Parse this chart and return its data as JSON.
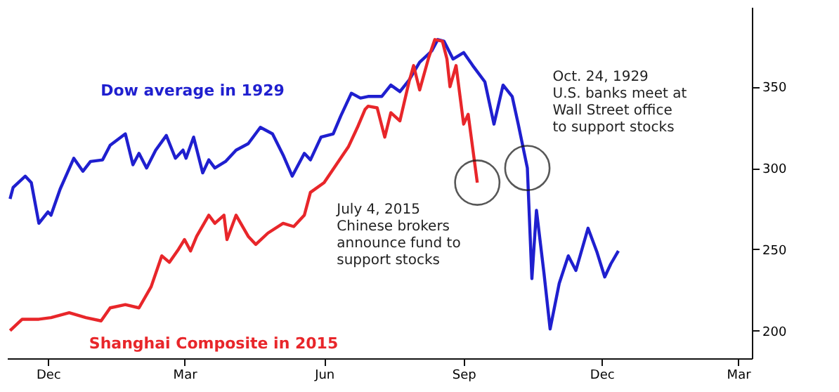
{
  "chart_data": {
    "type": "line",
    "xlim": [
      "1928-11-04",
      "1930-03-10"
    ],
    "xticks": [
      {
        "value": "1928-12-01",
        "label": "Dec"
      },
      {
        "value": "1929-03-01",
        "label": "Mar"
      },
      {
        "value": "1929-06-01",
        "label": "Jun"
      },
      {
        "value": "1929-09-01",
        "label": "Sep"
      },
      {
        "value": "1929-12-01",
        "label": "Dec"
      },
      {
        "value": "1930-03-01",
        "label": "Mar"
      }
    ],
    "ylim": [
      183,
      399
    ],
    "yticks": [
      200,
      250,
      300,
      350
    ],
    "series": [
      {
        "name": "Dow average in 1929",
        "color": "#1f1fcf",
        "x": [
          "1928-11-06",
          "1928-11-08",
          "1928-11-16",
          "1928-11-20",
          "1928-11-25",
          "1928-12-01",
          "1928-12-03",
          "1928-12-09",
          "1928-12-18",
          "1928-12-24",
          "1928-12-29",
          "1929-01-06",
          "1929-01-11",
          "1929-01-21",
          "1929-01-26",
          "1929-01-30",
          "1929-02-04",
          "1929-02-10",
          "1929-02-17",
          "1929-02-23",
          "1929-02-28",
          "1929-03-02",
          "1929-03-07",
          "1929-03-13",
          "1929-03-17",
          "1929-03-21",
          "1929-03-28",
          "1929-04-04",
          "1929-04-12",
          "1929-04-20",
          "1929-04-28",
          "1929-05-05",
          "1929-05-11",
          "1929-05-19",
          "1929-05-23",
          "1929-05-30",
          "1929-06-07",
          "1929-06-12",
          "1929-06-19",
          "1929-06-25",
          "1929-06-30",
          "1929-07-09",
          "1929-07-15",
          "1929-07-21",
          "1929-07-27",
          "1929-08-03",
          "1929-08-11",
          "1929-08-15",
          "1929-08-19",
          "1929-08-25",
          "1929-09-01",
          "1929-09-07",
          "1929-09-15",
          "1929-09-21",
          "1929-09-27",
          "1929-10-03",
          "1929-10-07",
          "1929-10-13",
          "1929-10-16",
          "1929-10-19",
          "1929-10-24",
          "1929-10-28",
          "1929-11-03",
          "1929-11-09",
          "1929-11-14",
          "1929-11-22",
          "1929-11-28",
          "1929-12-03",
          "1929-12-07",
          "1929-12-12"
        ],
        "values": [
          281,
          288,
          295,
          291,
          266,
          273,
          271,
          287,
          306,
          298,
          304,
          305,
          314,
          321,
          302,
          309,
          300,
          311,
          320,
          306,
          311,
          306,
          319,
          297,
          305,
          300,
          304,
          311,
          315,
          325,
          321,
          308,
          295,
          309,
          305,
          319,
          321,
          332,
          346,
          343,
          344,
          344,
          351,
          347,
          354,
          365,
          372,
          379,
          378,
          367,
          371,
          363,
          353,
          327,
          351,
          344,
          327,
          300,
          232,
          274,
          235,
          201,
          229,
          246,
          237,
          263,
          248,
          233,
          241,
          249
        ]
      },
      {
        "name": "Shanghai Composite in 2015",
        "color": "#e8262a",
        "x": [
          "1928-11-06",
          "1928-11-14",
          "1928-11-25",
          "1928-12-03",
          "1928-12-15",
          "1928-12-26",
          "1929-01-05",
          "1929-01-11",
          "1929-01-21",
          "1929-01-30",
          "1929-02-07",
          "1929-02-14",
          "1929-02-19",
          "1929-02-25",
          "1929-03-01",
          "1929-03-05",
          "1929-03-09",
          "1929-03-17",
          "1929-03-21",
          "1929-03-27",
          "1929-03-29",
          "1929-04-04",
          "1929-04-12",
          "1929-04-17",
          "1929-04-25",
          "1929-05-05",
          "1929-05-12",
          "1929-05-19",
          "1929-05-23",
          "1929-06-01",
          "1929-06-09",
          "1929-06-17",
          "1929-06-23",
          "1929-06-28",
          "1929-06-30",
          "1929-07-06",
          "1929-07-11",
          "1929-07-15",
          "1929-07-21",
          "1929-07-27",
          "1929-07-30",
          "1929-08-03",
          "1929-08-09",
          "1929-08-13",
          "1929-08-18",
          "1929-08-21",
          "1929-08-23",
          "1929-08-27",
          "1929-09-01",
          "1929-09-04",
          "1929-09-10"
        ],
        "values": [
          200,
          207,
          207,
          208,
          211,
          208,
          206,
          214,
          216,
          214,
          227,
          246,
          242,
          250,
          256,
          249,
          258,
          271,
          266,
          271,
          256,
          271,
          258,
          253,
          260,
          266,
          264,
          271,
          285,
          291,
          302,
          313,
          325,
          336,
          338,
          337,
          319,
          334,
          329,
          353,
          363,
          348,
          368,
          379,
          378,
          367,
          350,
          363,
          327,
          333,
          291
        ]
      }
    ],
    "annotations": [
      {
        "text": "July 4, 2015\nChinese brokers\nannounce fund to\nsupport stocks",
        "x": "1929-09-10",
        "y": 291
      },
      {
        "text": "Oct. 24, 1929\nU.S. banks meet at\nWall Street office\nto support stocks",
        "x": "1929-10-13",
        "y": 300
      }
    ]
  }
}
